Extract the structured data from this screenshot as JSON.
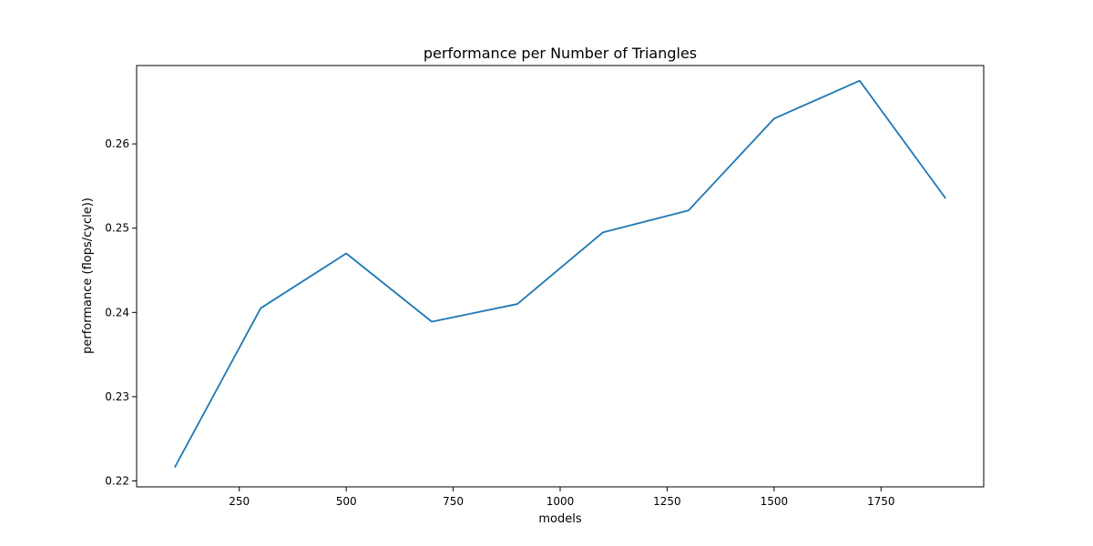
{
  "chart_data": {
    "type": "line",
    "title": "performance per Number of Triangles",
    "xlabel": "models",
    "ylabel": "performance (flops/cycle))",
    "xlim": [
      10,
      1990
    ],
    "ylim": [
      0.2193,
      0.2693
    ],
    "xticks": [
      250,
      500,
      750,
      1000,
      1250,
      1500,
      1750
    ],
    "yticks": [
      0.22,
      0.23,
      0.24,
      0.25,
      0.26
    ],
    "xtick_labels": [
      "250",
      "500",
      "750",
      "1000",
      "1250",
      "1500",
      "1750"
    ],
    "ytick_labels": [
      "0.22",
      "0.23",
      "0.24",
      "0.25",
      "0.26"
    ],
    "grid": false,
    "series": [
      {
        "color": "#1f77b4",
        "x": [
          100,
          300,
          500,
          700,
          900,
          1100,
          1300,
          1500,
          1700,
          1900
        ],
        "y": [
          0.2217,
          0.2405,
          0.247,
          0.2389,
          0.241,
          0.2495,
          0.2521,
          0.263,
          0.2675,
          0.2536
        ]
      }
    ]
  }
}
